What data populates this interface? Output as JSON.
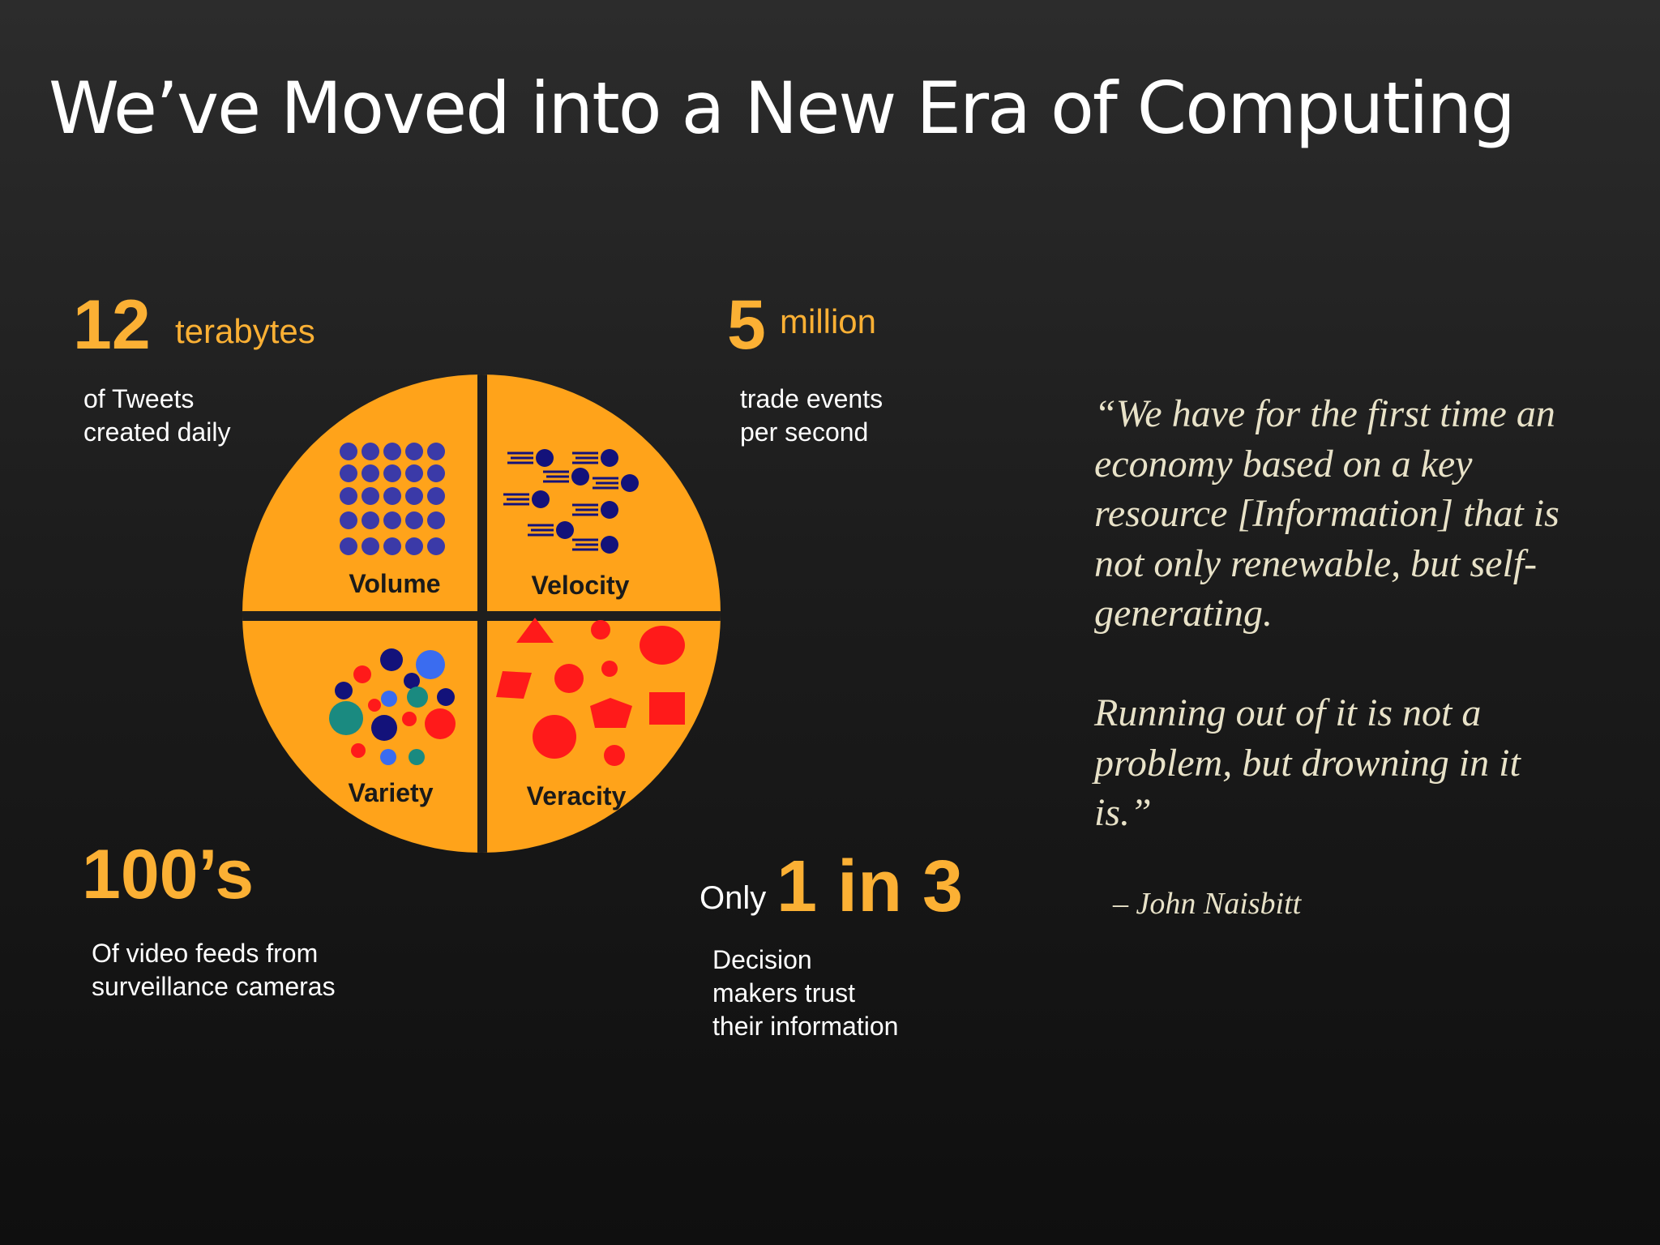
{
  "title": "We’ve Moved into a New Era of Computing",
  "stats": {
    "tweets": {
      "number": "12",
      "unit": "terabytes",
      "description": "of Tweets\ncreated daily"
    },
    "trades": {
      "number": "5",
      "unit": "million",
      "description": "trade events\nper second"
    },
    "video": {
      "number": "100’s",
      "description": "Of video feeds from\nsurveillance cameras"
    },
    "trust": {
      "prefix": "Only",
      "number": "1 in 3",
      "description": "Decision\nmakers trust\ntheir information"
    }
  },
  "diagram": {
    "quadrants": {
      "volume": "Volume",
      "velocity": "Velocity",
      "variety": "Variety",
      "veracity": "Veracity"
    },
    "colors": {
      "disc": "#ffa31a",
      "accent_text": "#fbb034",
      "navy": "#13127a",
      "purple_dot": "#3b3aa8",
      "red": "#ff1a1a",
      "teal": "#1a8a80",
      "blue": "#3a6cf0"
    }
  },
  "quote": {
    "text": "“We have for the first time an\neconomy based on a key\nresource [Information] that is\nnot only renewable, but self-\ngenerating.\n\nRunning out of it is not a\nproblem, but drowning in it\nis.”",
    "attribution": "– John Naisbitt"
  }
}
